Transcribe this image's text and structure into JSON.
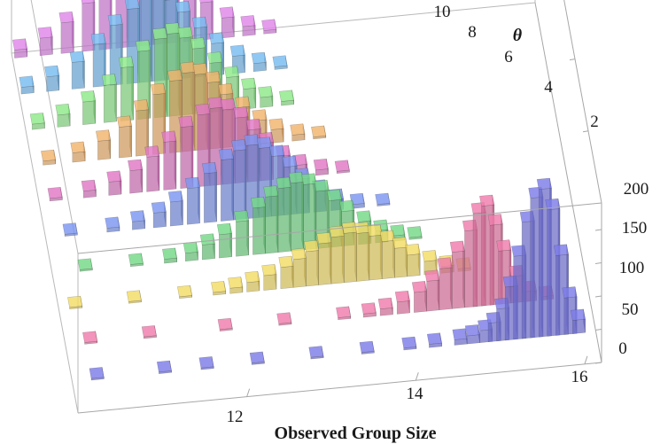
{
  "chart_data": {
    "type": "bar3d",
    "xlabel": "Observed Group Size",
    "ylabel": "θ",
    "zlabel": "",
    "x_ticks": [
      "12",
      "14",
      "16"
    ],
    "y_ticks": [
      "2",
      "4",
      "6",
      "8",
      "10"
    ],
    "z_ticks": [
      "0",
      "50",
      "100",
      "150",
      "200"
    ],
    "xlim": [
      10.0,
      16.2
    ],
    "ylim": [
      0,
      10
    ],
    "zlim": [
      0,
      240
    ],
    "bin_width": 0.15,
    "colors": [
      "#7070d0",
      "#d5709a",
      "#d9c45a",
      "#68c278",
      "#6f86d6",
      "#c86ab0",
      "#d8a060",
      "#7ed07a",
      "#6aa8d8",
      "#c878d0"
    ],
    "series": [
      {
        "theta": 1,
        "color": "#7070d0",
        "points": [
          [
            10.3,
            2
          ],
          [
            11.1,
            1
          ],
          [
            11.6,
            1
          ],
          [
            12.2,
            1
          ],
          [
            12.9,
            2
          ],
          [
            13.5,
            1
          ],
          [
            14.0,
            3
          ],
          [
            14.3,
            5
          ],
          [
            14.6,
            8
          ],
          [
            14.75,
            12
          ],
          [
            14.9,
            18
          ],
          [
            15.0,
            28
          ],
          [
            15.1,
            48
          ],
          [
            15.2,
            80
          ],
          [
            15.3,
            125
          ],
          [
            15.4,
            175
          ],
          [
            15.5,
            210
          ],
          [
            15.6,
            222
          ],
          [
            15.7,
            190
          ],
          [
            15.8,
            120
          ],
          [
            15.9,
            55
          ],
          [
            16.0,
            20
          ]
        ]
      },
      {
        "theta": 2,
        "color": "#d5709a",
        "points": [
          [
            10.3,
            2
          ],
          [
            11.0,
            1
          ],
          [
            11.9,
            1
          ],
          [
            12.6,
            2
          ],
          [
            13.3,
            3
          ],
          [
            13.6,
            5
          ],
          [
            13.8,
            10
          ],
          [
            14.0,
            18
          ],
          [
            14.2,
            30
          ],
          [
            14.35,
            45
          ],
          [
            14.5,
            62
          ],
          [
            14.65,
            85
          ],
          [
            14.8,
            115
          ],
          [
            14.9,
            140
          ],
          [
            15.0,
            150
          ],
          [
            15.1,
            120
          ],
          [
            15.2,
            80
          ],
          [
            15.35,
            40
          ],
          [
            15.5,
            15
          ],
          [
            15.7,
            5
          ]
        ]
      },
      {
        "theta": 3,
        "color": "#d9c45a",
        "points": [
          [
            10.2,
            1
          ],
          [
            10.9,
            2
          ],
          [
            11.5,
            2
          ],
          [
            11.9,
            4
          ],
          [
            12.1,
            8
          ],
          [
            12.3,
            14
          ],
          [
            12.5,
            22
          ],
          [
            12.7,
            32
          ],
          [
            12.85,
            42
          ],
          [
            13.0,
            52
          ],
          [
            13.15,
            62
          ],
          [
            13.3,
            70
          ],
          [
            13.45,
            74
          ],
          [
            13.6,
            72
          ],
          [
            13.75,
            66
          ],
          [
            13.9,
            56
          ],
          [
            14.05,
            44
          ],
          [
            14.2,
            32
          ],
          [
            14.4,
            20
          ],
          [
            14.6,
            10
          ],
          [
            14.8,
            4
          ]
        ]
      },
      {
        "theta": 4,
        "color": "#68c278",
        "points": [
          [
            10.4,
            2
          ],
          [
            11.0,
            3
          ],
          [
            11.4,
            6
          ],
          [
            11.65,
            12
          ],
          [
            11.85,
            22
          ],
          [
            12.05,
            35
          ],
          [
            12.25,
            52
          ],
          [
            12.45,
            70
          ],
          [
            12.6,
            85
          ],
          [
            12.75,
            96
          ],
          [
            12.9,
            102
          ],
          [
            13.05,
            98
          ],
          [
            13.2,
            86
          ],
          [
            13.35,
            70
          ],
          [
            13.5,
            52
          ],
          [
            13.7,
            34
          ],
          [
            13.9,
            18
          ],
          [
            14.1,
            8
          ],
          [
            14.3,
            3
          ]
        ]
      },
      {
        "theta": 5,
        "color": "#6f86d6",
        "points": [
          [
            10.3,
            3
          ],
          [
            10.8,
            6
          ],
          [
            11.1,
            12
          ],
          [
            11.35,
            22
          ],
          [
            11.55,
            36
          ],
          [
            11.75,
            54
          ],
          [
            11.95,
            74
          ],
          [
            12.15,
            92
          ],
          [
            12.3,
            104
          ],
          [
            12.45,
            110
          ],
          [
            12.6,
            104
          ],
          [
            12.75,
            90
          ],
          [
            12.9,
            72
          ],
          [
            13.05,
            52
          ],
          [
            13.25,
            32
          ],
          [
            13.45,
            16
          ],
          [
            13.7,
            6
          ],
          [
            14.0,
            2
          ]
        ]
      },
      {
        "theta": 6,
        "color": "#c86ab0",
        "points": [
          [
            10.2,
            4
          ],
          [
            10.6,
            10
          ],
          [
            10.9,
            20
          ],
          [
            11.15,
            34
          ],
          [
            11.35,
            52
          ],
          [
            11.55,
            72
          ],
          [
            11.75,
            92
          ],
          [
            11.95,
            108
          ],
          [
            12.1,
            116
          ],
          [
            12.25,
            112
          ],
          [
            12.4,
            98
          ],
          [
            12.55,
            78
          ],
          [
            12.7,
            56
          ],
          [
            12.9,
            34
          ],
          [
            13.1,
            18
          ],
          [
            13.35,
            8
          ],
          [
            13.6,
            3
          ]
        ]
      },
      {
        "theta": 7,
        "color": "#d8a060",
        "points": [
          [
            10.2,
            6
          ],
          [
            10.55,
            14
          ],
          [
            10.85,
            28
          ],
          [
            11.1,
            46
          ],
          [
            11.3,
            68
          ],
          [
            11.5,
            90
          ],
          [
            11.7,
            108
          ],
          [
            11.85,
            118
          ],
          [
            12.0,
            114
          ],
          [
            12.15,
            100
          ],
          [
            12.3,
            80
          ],
          [
            12.5,
            58
          ],
          [
            12.7,
            36
          ],
          [
            12.9,
            20
          ],
          [
            13.15,
            9
          ],
          [
            13.4,
            3
          ]
        ]
      },
      {
        "theta": 8,
        "color": "#7ed07a",
        "points": [
          [
            10.15,
            8
          ],
          [
            10.45,
            18
          ],
          [
            10.75,
            34
          ],
          [
            11.0,
            56
          ],
          [
            11.2,
            80
          ],
          [
            11.4,
            102
          ],
          [
            11.6,
            118
          ],
          [
            11.75,
            124
          ],
          [
            11.9,
            116
          ],
          [
            12.05,
            98
          ],
          [
            12.25,
            74
          ],
          [
            12.45,
            50
          ],
          [
            12.65,
            30
          ],
          [
            12.85,
            15
          ],
          [
            13.1,
            6
          ]
        ]
      },
      {
        "theta": 9,
        "color": "#6aa8d8",
        "points": [
          [
            10.1,
            10
          ],
          [
            10.4,
            22
          ],
          [
            10.7,
            40
          ],
          [
            10.95,
            64
          ],
          [
            11.15,
            90
          ],
          [
            11.35,
            112
          ],
          [
            11.5,
            126
          ],
          [
            11.65,
            130
          ],
          [
            11.8,
            120
          ],
          [
            11.95,
            100
          ],
          [
            12.15,
            74
          ],
          [
            12.35,
            48
          ],
          [
            12.6,
            26
          ],
          [
            12.85,
            12
          ],
          [
            13.1,
            4
          ]
        ]
      },
      {
        "theta": 10,
        "color": "#c878d0",
        "points": [
          [
            10.1,
            12
          ],
          [
            10.4,
            26
          ],
          [
            10.65,
            46
          ],
          [
            10.9,
            72
          ],
          [
            11.1,
            100
          ],
          [
            11.3,
            126
          ],
          [
            11.45,
            142
          ],
          [
            11.6,
            150
          ],
          [
            11.75,
            138
          ],
          [
            11.9,
            114
          ],
          [
            12.1,
            84
          ],
          [
            12.3,
            56
          ],
          [
            12.55,
            30
          ],
          [
            12.8,
            14
          ],
          [
            13.05,
            5
          ]
        ]
      }
    ],
    "grid": false
  }
}
